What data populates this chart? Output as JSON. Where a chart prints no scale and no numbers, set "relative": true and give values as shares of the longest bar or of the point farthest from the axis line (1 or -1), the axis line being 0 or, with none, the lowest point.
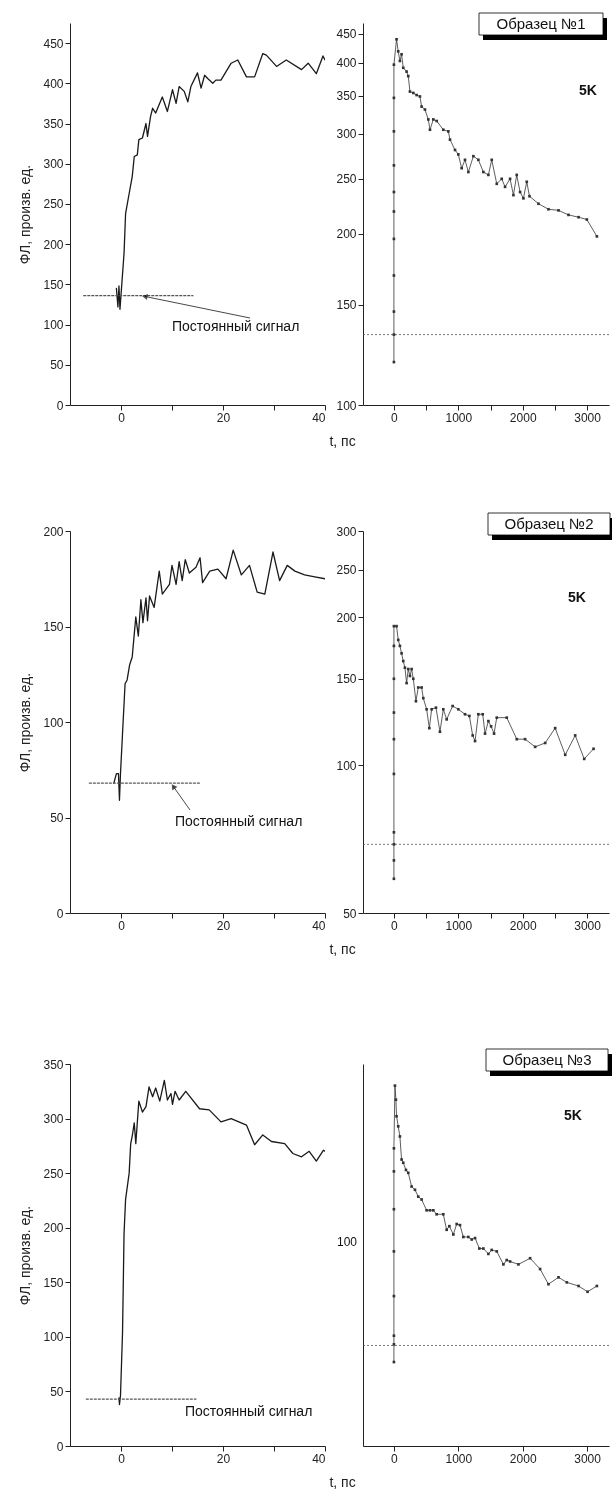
{
  "chart_data": [
    {
      "type": "line",
      "ylabel": "ФЛ, произв. ед.",
      "xlim": [
        -10,
        40
      ],
      "ylim": [
        0,
        475
      ],
      "xticks": [
        0,
        {
          "value": 10,
          "label": null
        },
        20,
        {
          "value": 30,
          "label": null
        },
        40
      ],
      "yticks": [
        0,
        50,
        100,
        150,
        200,
        250,
        300,
        350,
        400,
        450
      ],
      "series": [
        {
          "color": "#1a1a1a",
          "x": [
            -0.9,
            -0.6,
            -0.4,
            -0.2,
            0.6,
            0.9,
            1.6,
            2.2,
            2.6,
            3.2,
            3.5,
            4.2,
            4.9,
            5.2,
            5.8,
            6.2,
            6.8,
            8.1,
            9.1,
            10.1,
            10.8,
            11.4,
            12.4,
            13.1,
            13.7,
            15.0,
            15.7,
            16.4,
            17.0,
            18.0,
            18.6,
            19.6,
            21.6,
            22.9,
            24.6,
            26.2,
            27.8,
            28.5,
            30.5,
            32.4,
            35.4,
            36.7,
            38.3,
            39.6,
            40
          ],
          "values": [
            145,
            122,
            148,
            119,
            189,
            238,
            263,
            284,
            309,
            311,
            330,
            332,
            350,
            334,
            359,
            369,
            363,
            383,
            365,
            392,
            375,
            396,
            390,
            377,
            396,
            413,
            394,
            410,
            406,
            400,
            404,
            404,
            425,
            429,
            408,
            408,
            437,
            435,
            421,
            429,
            417,
            425,
            412,
            434,
            429
          ]
        },
        {
          "type": "line",
          "line_style": "dotted",
          "color": "#555555",
          "x": [
            -7.3,
            14.1
          ],
          "values": [
            136,
            136
          ]
        }
      ],
      "annotations": [
        {
          "text": "Постоянный сигнал",
          "x": 3.9,
          "y": 136
        }
      ]
    },
    {
      "type": "line",
      "xlabel": "t, пс",
      "log": true,
      "marker": "square",
      "xlim": [
        -480,
        3340
      ],
      "ylim": [
        100,
        470
      ],
      "xticks": [
        0,
        {
          "value": 500,
          "label": null
        },
        1000,
        {
          "value": 1500,
          "label": null
        },
        2000,
        {
          "value": 2500,
          "label": null
        },
        3000
      ],
      "yticks": [
        100,
        150,
        200,
        250,
        300,
        350,
        400,
        450
      ],
      "series": [
        {
          "color": "#333333",
          "x": [
            0,
            0,
            0,
            0,
            0,
            0,
            0,
            0,
            0,
            0,
            0,
            41,
            67,
            93,
            119,
            145,
            197,
            223,
            249,
            301,
            353,
            404,
            430,
            482,
            534,
            560,
            612,
            664,
            767,
            845,
            871,
            949,
            1000,
            1052,
            1104,
            1156,
            1234,
            1311,
            1389,
            1467,
            1519,
            1597,
            1674,
            1726,
            1804,
            1856,
            1907,
            1959,
            2011,
            2063,
            2105,
            2245,
            2400,
            2556,
            2711,
            2867,
            2996,
            3152
          ],
          "values": [
            119,
            133,
            146,
            169,
            196,
            219,
            237,
            264,
            303,
            347,
            397,
            440,
            419,
            403,
            414,
            392,
            386,
            379,
            356,
            354,
            351,
            349,
            335,
            331,
            318,
            305,
            318,
            316,
            305,
            303,
            293,
            281,
            276,
            261,
            270,
            257,
            274,
            270,
            257,
            254,
            270,
            245,
            250,
            242,
            250,
            234,
            254,
            237,
            231,
            247,
            233,
            226,
            221,
            220,
            216,
            214,
            212,
            198
          ]
        }
      ],
      "ref_lines": [
        {
          "axis": "y",
          "value": 133,
          "line_style": "dotted",
          "color": "#555555"
        }
      ],
      "annotations": [
        "Образец №1",
        "5K"
      ]
    },
    {
      "type": "line",
      "ylabel": "ФЛ, произв. ед.",
      "xlim": [
        -10,
        40
      ],
      "ylim": [
        0,
        200
      ],
      "xticks": [
        0,
        {
          "value": 10,
          "label": null
        },
        20,
        {
          "value": 30,
          "label": null
        },
        40
      ],
      "yticks": [
        0,
        50,
        100,
        150,
        200
      ],
      "series": [
        {
          "color": "#1a1a1a",
          "x": [
            -1.4,
            -0.9,
            -0.5,
            -0.3,
            -0.1,
            0.3,
            0.8,
            1.2,
            1.7,
            2.2,
            2.6,
            2.9,
            3.4,
            3.9,
            4.3,
            4.9,
            5.2,
            5.6,
            6.5,
            7.5,
            8.1,
            9.5,
            10.0,
            10.8,
            11.4,
            12.0,
            12.6,
            13.4,
            14.7,
            15.5,
            16.0,
            17.4,
            19.0,
            20.6,
            22.0,
            23.6,
            25.2,
            26.7,
            28.2,
            29.8,
            31.1,
            32.6,
            34.1,
            36.0,
            38.0,
            40
          ],
          "values": [
            68,
            73,
            73,
            59,
            73,
            94,
            120,
            122,
            130,
            134,
            146,
            155,
            145,
            164,
            152,
            165,
            153,
            166,
            160,
            179,
            167,
            172,
            182,
            172,
            184,
            174,
            185,
            178,
            181,
            186,
            173,
            179,
            180,
            175,
            190,
            177,
            182,
            168,
            167,
            189,
            174,
            182,
            179,
            177,
            176,
            175
          ]
        },
        {
          "type": "line",
          "line_style": "dotted",
          "color": "#555555",
          "x": [
            -6.2,
            15.4
          ],
          "values": [
            68,
            68
          ]
        }
      ],
      "annotations": [
        {
          "text": "Постоянный сигнал",
          "x": 9.8,
          "y": 68
        }
      ]
    },
    {
      "type": "line",
      "xlabel": "t, пс",
      "log": true,
      "marker": "square",
      "xlim": [
        -480,
        3340
      ],
      "ylim": [
        50,
        300
      ],
      "xticks": [
        0,
        {
          "value": 500,
          "label": null
        },
        1000,
        {
          "value": 1500,
          "label": null
        },
        2000,
        {
          "value": 2500,
          "label": null
        },
        3000
      ],
      "yticks": [
        50,
        100,
        150,
        200,
        250,
        300
      ],
      "series": [
        {
          "color": "#333333",
          "x": [
            0,
            0,
            0,
            0,
            0,
            0,
            0,
            0,
            0,
            0,
            41,
            67,
            93,
            119,
            145,
            171,
            197,
            223,
            249,
            275,
            301,
            342,
            378,
            430,
            456,
            508,
            550,
            586,
            653,
            715,
            767,
            819,
            912,
            1000,
            1104,
            1172,
            1223,
            1260,
            1311,
            1379,
            1415,
            1467,
            1509,
            1555,
            1597,
            1752,
            1908,
            2037,
            2193,
            2349,
            2504,
            2660,
            2815,
            2955,
            3100
          ],
          "values": [
            58.7,
            64,
            69,
            73,
            96,
            113,
            128,
            150,
            175,
            192,
            192,
            180,
            175,
            169,
            163,
            158,
            147,
            157,
            152,
            157,
            150,
            135,
            144,
            144,
            137,
            130,
            119,
            130,
            131,
            117,
            130,
            124,
            132,
            130,
            127,
            126,
            115,
            112,
            127,
            127,
            116,
            123,
            120,
            116,
            125,
            125,
            113,
            113,
            109,
            111,
            119,
            105,
            115,
            103,
            108
          ]
        }
      ],
      "ref_lines": [
        {
          "axis": "y",
          "value": 69,
          "line_style": "dotted",
          "color": "#555555"
        }
      ],
      "annotations": [
        "Образец №2",
        "5K"
      ]
    },
    {
      "type": "line",
      "ylabel": "ФЛ, произв. ед.",
      "xlim": [
        -10,
        40
      ],
      "ylim": [
        0,
        350
      ],
      "xticks": [
        0,
        {
          "value": 10,
          "label": null
        },
        20,
        {
          "value": 30,
          "label": null
        },
        40
      ],
      "yticks": [
        0,
        50,
        100,
        150,
        200,
        250,
        300,
        350
      ],
      "series": [
        {
          "color": "#1a1a1a",
          "x": [
            -0.4,
            -0.3,
            -0.1,
            0.3,
            0.6,
            0.9,
            1.6,
            1.9,
            2.2,
            2.6,
            2.9,
            3.5,
            4.2,
            4.9,
            5.5,
            6.2,
            6.8,
            7.6,
            8.5,
            9.1,
            9.8,
            10.1,
            10.6,
            11.4,
            12.7,
            15.4,
            17.3,
            19.6,
            21.6,
            24.6,
            26.2,
            27.8,
            29.5,
            32.1,
            33.7,
            35.4,
            36.9,
            38.3,
            39.7,
            40
          ],
          "values": [
            44,
            38,
            46,
            104,
            195,
            226,
            250,
            277,
            284,
            296,
            277,
            316,
            306,
            311,
            329,
            320,
            328,
            316,
            335,
            317,
            323,
            313,
            325,
            317,
            325,
            309,
            308,
            297,
            300,
            294,
            276,
            285,
            279,
            277,
            268,
            265,
            270,
            261,
            271,
            270
          ]
        },
        {
          "type": "line",
          "line_style": "dotted",
          "color": "#555555",
          "x": [
            -6.8,
            14.7
          ],
          "values": [
            43,
            43
          ]
        }
      ],
      "annotations": [
        "Постоянный сигнал"
      ]
    },
    {
      "type": "line",
      "xlabel": "t, пс",
      "relative": true,
      "marker": "square",
      "xlim": [
        -480,
        3340
      ],
      "xticks": [
        0,
        1000,
        2000,
        3000
      ],
      "series": [
        {
          "color": "#333333",
          "x": [
            0,
            0,
            0,
            0,
            0,
            0,
            0,
            0,
            16,
            31,
            41,
            67,
            93,
            119,
            145,
            187,
            223,
            275,
            327,
            378,
            430,
            508,
            560,
            612,
            664,
            767,
            819,
            861,
            923,
            975,
            1026,
            1078,
            1156,
            1208,
            1260,
            1327,
            1389,
            1467,
            1519,
            1597,
            1700,
            1752,
            1804,
            1934,
            2115,
            2270,
            2400,
            2556,
            2685,
            2867,
            3007,
            3152
          ],
          "values": [
            0.233,
            0.282,
            0.306,
            0.416,
            0.54,
            0.657,
            0.762,
            0.826,
            1,
            0.961,
            0.915,
            0.887,
            0.859,
            0.795,
            0.786,
            0.766,
            0.758,
            0.72,
            0.711,
            0.692,
            0.684,
            0.654,
            0.654,
            0.654,
            0.643,
            0.643,
            0.6,
            0.61,
            0.587,
            0.616,
            0.613,
            0.58,
            0.58,
            0.573,
            0.577,
            0.548,
            0.548,
            0.533,
            0.544,
            0.54,
            0.504,
            0.516,
            0.512,
            0.504,
            0.521,
            0.491,
            0.449,
            0.468,
            0.454,
            0.444,
            0.428,
            0.444
          ]
        }
      ],
      "ref_lines": [
        {
          "axis": "y",
          "value": 0.279,
          "line_style": "dotted",
          "color": "#555555"
        }
      ],
      "annotations": [
        "Образец №3",
        "5K",
        "100"
      ]
    }
  ]
}
